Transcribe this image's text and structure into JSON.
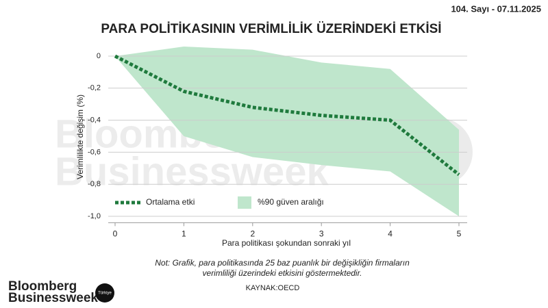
{
  "header": {
    "issue": "104. Sayı - 07.11.2025"
  },
  "chart_data": {
    "type": "line",
    "title": "PARA POLİTİKASININ VERİMLİLİK ÜZERİNDEKİ ETKİSİ",
    "y_label": "Verimlilikte değişim (%)",
    "x_label": "Para politikası şokundan sonraki yıl",
    "x": [
      0,
      1,
      2,
      3,
      4,
      5
    ],
    "xlim": [
      0,
      5
    ],
    "xticks": [
      0,
      1,
      2,
      3,
      4,
      5
    ],
    "ylim": [
      -1.04,
      0.07
    ],
    "yticks": [
      0,
      {
        "value": -0.2,
        "label": "-0,2"
      },
      {
        "value": -0.4,
        "label": "-0,4"
      },
      {
        "value": -0.6,
        "label": "-0,6"
      },
      {
        "value": -0.8,
        "label": "-0,8"
      },
      {
        "value": -1.0,
        "label": "-1,0"
      }
    ],
    "grid": true,
    "series": [
      {
        "name": "Ortalama etki",
        "color": "#1f7a3d",
        "values": [
          0,
          -0.22,
          -0.32,
          -0.37,
          -0.4,
          -0.74
        ]
      }
    ],
    "band": {
      "name": "%90 güven aralığı",
      "color": "#bfe6cc",
      "upper": [
        0,
        0.06,
        0.04,
        -0.04,
        -0.08,
        -0.46
      ],
      "lower": [
        0,
        -0.5,
        -0.63,
        -0.68,
        -0.72,
        -1.0
      ]
    }
  },
  "footer": {
    "note": [
      "Not: Grafik, para politikasında 25 baz puanlık bir değişikliğin firmaların",
      "verimliliği üzerindeki etkisini göstermektedir."
    ],
    "source": "KAYNAK:OECD"
  },
  "logo": {
    "line1": "Bloomberg",
    "line2": "Businessweek",
    "badge": "Türkiye"
  }
}
